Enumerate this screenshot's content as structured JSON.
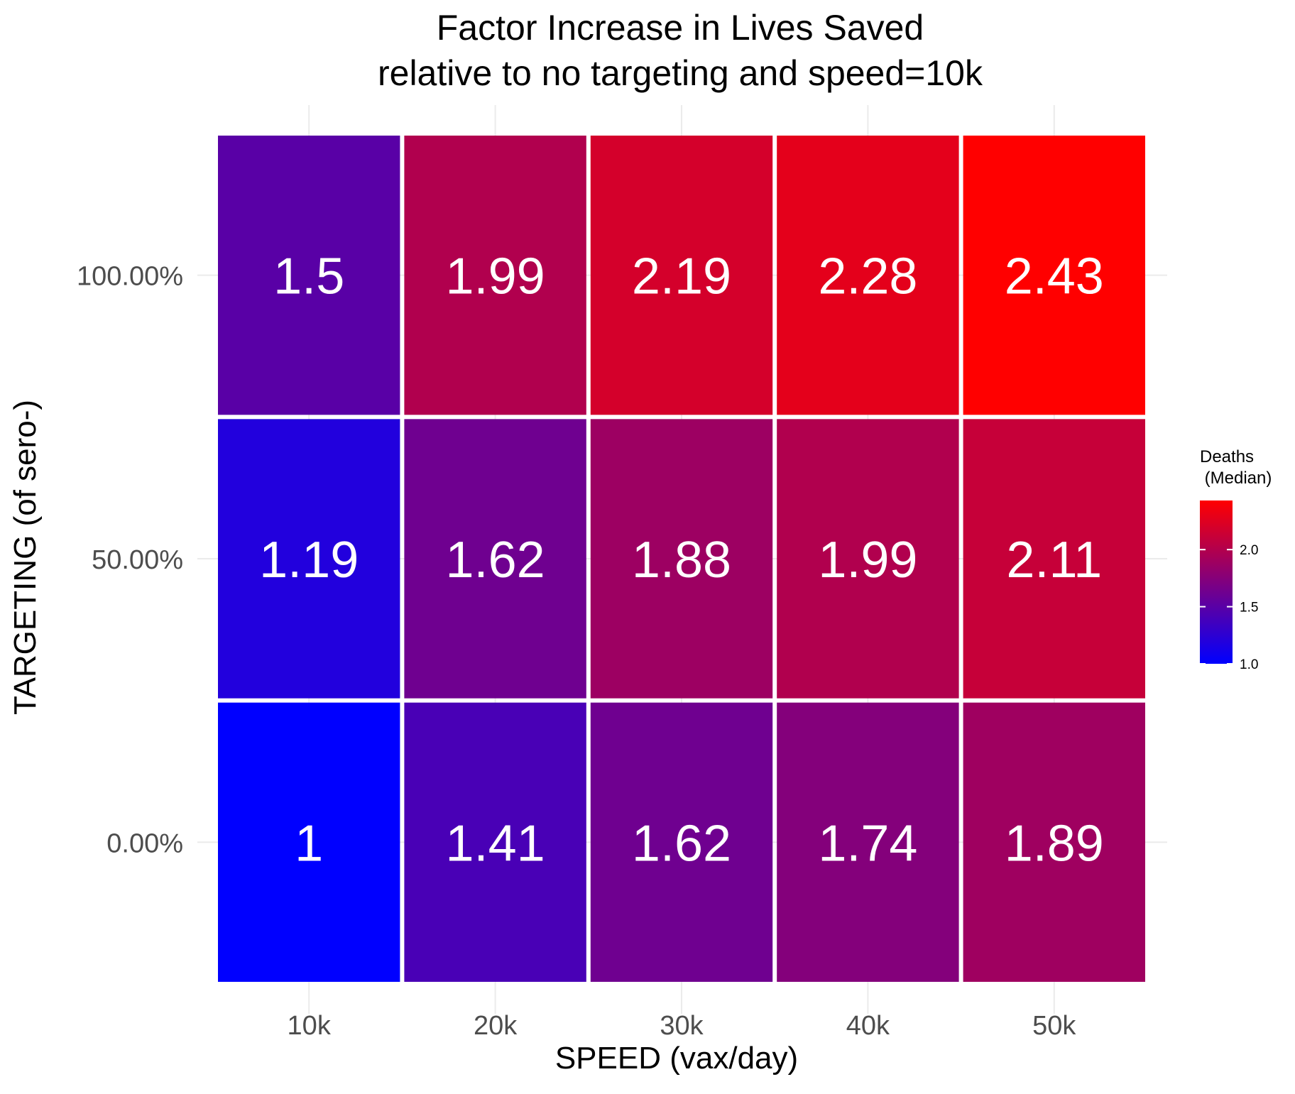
{
  "chart_data": {
    "type": "heatmap",
    "title": "Factor Increase in Lives Saved",
    "subtitle": "relative to no targeting and speed=10k",
    "xlabel": "SPEED (vax/day)",
    "ylabel": "TARGETING (of sero-)",
    "x_categories": [
      "10k",
      "20k",
      "30k",
      "40k",
      "50k"
    ],
    "y_categories": [
      "0.00%",
      "50.00%",
      "100.00%"
    ],
    "values": [
      [
        1,
        1.41,
        1.62,
        1.74,
        1.89
      ],
      [
        1.19,
        1.62,
        1.88,
        1.99,
        2.11
      ],
      [
        1.5,
        1.99,
        2.19,
        2.28,
        2.43
      ]
    ],
    "value_labels": [
      [
        "1",
        "1.41",
        "1.62",
        "1.74",
        "1.89"
      ],
      [
        "1.19",
        "1.62",
        "1.88",
        "1.99",
        "2.11"
      ],
      [
        "1.5",
        "1.99",
        "2.19",
        "2.28",
        "2.43"
      ]
    ],
    "legend": {
      "title_line1": "Deaths",
      "title_line2": " (Median)",
      "ticks": [
        1.0,
        1.5,
        2.0
      ],
      "tick_labels": [
        "1.0",
        "1.5",
        "2.0"
      ],
      "range": [
        1,
        2.43
      ],
      "low_color": "#0000ff",
      "high_color": "#ff0000",
      "placement": "right"
    },
    "grid": true,
    "colors": {
      "cell_label": "#ffffff",
      "gridline": "#ebebeb",
      "tick_text": "#4d4d4d",
      "title_text": "#000000"
    }
  }
}
